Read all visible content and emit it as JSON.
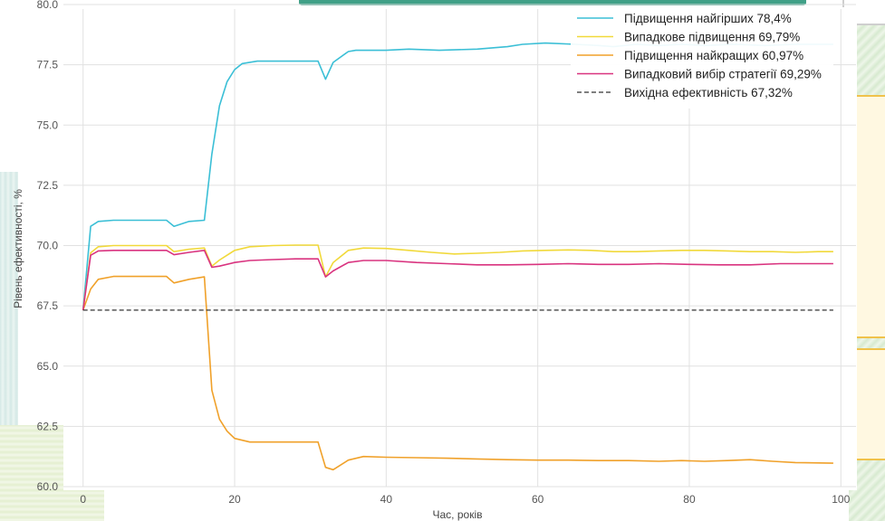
{
  "colors": {
    "best_worst": "#3bbfd6",
    "random_up": "#f1d93a",
    "best_up": "#f0a12a",
    "random_strategy": "#d9337f",
    "baseline": "#333333"
  },
  "chart_data": {
    "type": "line",
    "title": "",
    "xlabel": "Час, років",
    "ylabel": "Рівень ефективності, %",
    "xlim": [
      -2,
      102
    ],
    "ylim": [
      60,
      80
    ],
    "xticks": [
      0,
      20,
      40,
      60,
      80,
      100
    ],
    "yticks": [
      60.0,
      62.5,
      65.0,
      67.5,
      70.0,
      72.5,
      75.0,
      77.5,
      80.0
    ],
    "grid": true,
    "legend_position": "top-right",
    "series": [
      {
        "name": "Підвищення найгірших 78,4%",
        "color_key": "best_worst",
        "style": "solid",
        "points": [
          [
            0,
            67.32
          ],
          [
            1,
            70.8
          ],
          [
            2,
            71.0
          ],
          [
            4,
            71.05
          ],
          [
            8,
            71.05
          ],
          [
            11,
            71.05
          ],
          [
            12,
            70.8
          ],
          [
            14,
            71.0
          ],
          [
            16,
            71.05
          ],
          [
            17,
            73.8
          ],
          [
            18,
            75.8
          ],
          [
            19,
            76.8
          ],
          [
            20,
            77.3
          ],
          [
            21,
            77.55
          ],
          [
            23,
            77.65
          ],
          [
            26,
            77.65
          ],
          [
            31,
            77.65
          ],
          [
            32,
            76.9
          ],
          [
            33,
            77.6
          ],
          [
            35,
            78.05
          ],
          [
            36,
            78.1
          ],
          [
            40,
            78.1
          ],
          [
            43,
            78.15
          ],
          [
            47,
            78.1
          ],
          [
            52,
            78.15
          ],
          [
            56,
            78.25
          ],
          [
            58,
            78.35
          ],
          [
            61,
            78.4
          ],
          [
            65,
            78.35
          ],
          [
            68,
            78.3
          ],
          [
            70,
            78.25
          ],
          [
            73,
            78.35
          ],
          [
            76,
            78.3
          ],
          [
            79,
            78.35
          ],
          [
            82,
            78.3
          ],
          [
            86,
            78.35
          ],
          [
            90,
            78.3
          ],
          [
            94,
            78.35
          ],
          [
            99,
            78.35
          ]
        ]
      },
      {
        "name": "Випадкове підвищення 69,79%",
        "color_key": "random_up",
        "style": "solid",
        "points": [
          [
            0,
            67.32
          ],
          [
            1,
            69.7
          ],
          [
            2,
            69.95
          ],
          [
            4,
            70.0
          ],
          [
            8,
            70.0
          ],
          [
            11,
            70.0
          ],
          [
            12,
            69.75
          ],
          [
            14,
            69.85
          ],
          [
            16,
            69.9
          ],
          [
            17,
            69.15
          ],
          [
            18,
            69.4
          ],
          [
            20,
            69.8
          ],
          [
            22,
            69.95
          ],
          [
            25,
            70.0
          ],
          [
            28,
            70.02
          ],
          [
            31,
            70.02
          ],
          [
            32,
            68.7
          ],
          [
            33,
            69.3
          ],
          [
            35,
            69.8
          ],
          [
            37,
            69.9
          ],
          [
            40,
            69.88
          ],
          [
            43,
            69.8
          ],
          [
            46,
            69.72
          ],
          [
            49,
            69.65
          ],
          [
            52,
            69.68
          ],
          [
            55,
            69.72
          ],
          [
            58,
            69.78
          ],
          [
            61,
            69.8
          ],
          [
            64,
            69.82
          ],
          [
            67,
            69.8
          ],
          [
            70,
            69.75
          ],
          [
            73,
            69.75
          ],
          [
            76,
            69.78
          ],
          [
            79,
            69.8
          ],
          [
            82,
            69.8
          ],
          [
            85,
            69.78
          ],
          [
            88,
            69.75
          ],
          [
            91,
            69.75
          ],
          [
            94,
            69.72
          ],
          [
            97,
            69.75
          ],
          [
            99,
            69.75
          ]
        ]
      },
      {
        "name": "Підвищення найкращих 60,97%",
        "color_key": "best_up",
        "style": "solid",
        "points": [
          [
            0,
            67.32
          ],
          [
            1,
            68.2
          ],
          [
            2,
            68.6
          ],
          [
            4,
            68.72
          ],
          [
            8,
            68.72
          ],
          [
            11,
            68.72
          ],
          [
            12,
            68.45
          ],
          [
            14,
            68.6
          ],
          [
            16,
            68.7
          ],
          [
            17,
            64.0
          ],
          [
            18,
            62.8
          ],
          [
            19,
            62.3
          ],
          [
            20,
            62.0
          ],
          [
            22,
            61.85
          ],
          [
            25,
            61.85
          ],
          [
            28,
            61.85
          ],
          [
            31,
            61.85
          ],
          [
            32,
            60.8
          ],
          [
            33,
            60.7
          ],
          [
            35,
            61.1
          ],
          [
            37,
            61.25
          ],
          [
            40,
            61.22
          ],
          [
            44,
            61.2
          ],
          [
            48,
            61.18
          ],
          [
            52,
            61.15
          ],
          [
            56,
            61.12
          ],
          [
            60,
            61.1
          ],
          [
            64,
            61.1
          ],
          [
            68,
            61.08
          ],
          [
            72,
            61.08
          ],
          [
            76,
            61.05
          ],
          [
            79,
            61.08
          ],
          [
            82,
            61.05
          ],
          [
            85,
            61.08
          ],
          [
            88,
            61.12
          ],
          [
            91,
            61.05
          ],
          [
            94,
            61.0
          ],
          [
            99,
            60.97
          ]
        ]
      },
      {
        "name": "Випадковий вибір стратегії 69,29%",
        "color_key": "random_strategy",
        "style": "solid",
        "points": [
          [
            0,
            67.32
          ],
          [
            1,
            69.6
          ],
          [
            2,
            69.78
          ],
          [
            4,
            69.8
          ],
          [
            8,
            69.8
          ],
          [
            11,
            69.8
          ],
          [
            12,
            69.62
          ],
          [
            14,
            69.72
          ],
          [
            16,
            69.8
          ],
          [
            17,
            69.1
          ],
          [
            18,
            69.15
          ],
          [
            20,
            69.3
          ],
          [
            22,
            69.38
          ],
          [
            25,
            69.42
          ],
          [
            28,
            69.45
          ],
          [
            31,
            69.45
          ],
          [
            32,
            68.7
          ],
          [
            33,
            68.95
          ],
          [
            35,
            69.3
          ],
          [
            37,
            69.38
          ],
          [
            40,
            69.38
          ],
          [
            44,
            69.3
          ],
          [
            48,
            69.25
          ],
          [
            52,
            69.2
          ],
          [
            56,
            69.2
          ],
          [
            60,
            69.22
          ],
          [
            64,
            69.25
          ],
          [
            68,
            69.22
          ],
          [
            72,
            69.22
          ],
          [
            76,
            69.25
          ],
          [
            80,
            69.22
          ],
          [
            84,
            69.2
          ],
          [
            88,
            69.2
          ],
          [
            92,
            69.25
          ],
          [
            96,
            69.25
          ],
          [
            99,
            69.25
          ]
        ]
      },
      {
        "name": "Вихідна ефективність 67,32%",
        "color_key": "baseline",
        "style": "dashed",
        "points": [
          [
            0,
            67.32
          ],
          [
            99,
            67.32
          ]
        ]
      }
    ]
  }
}
